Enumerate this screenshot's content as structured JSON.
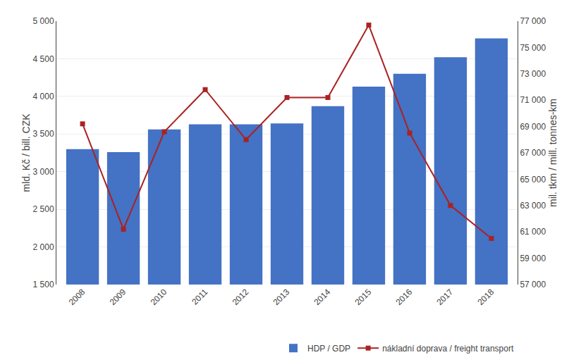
{
  "chart_data": {
    "type": "bar",
    "categories": [
      "2008",
      "2009",
      "2010",
      "2011",
      "2012",
      "2013",
      "2014",
      "2015",
      "2016",
      "2017",
      "2018"
    ],
    "series": [
      {
        "name": "HDP / GDP",
        "type": "bar",
        "color": "#4472C4",
        "values": [
          3300,
          3260,
          3560,
          3630,
          3630,
          3640,
          3870,
          4130,
          4300,
          4520,
          4770
        ]
      },
      {
        "name": "nákladní doprava / freight transport",
        "type": "line",
        "color": "#AA2222",
        "marker": "square",
        "axis": "y2",
        "values": [
          69200,
          61200,
          68600,
          71800,
          68000,
          71200,
          71200,
          76700,
          68500,
          63000,
          60500
        ]
      }
    ],
    "ylabel": "mld. Kč / bill. CZK",
    "y2label": "mil. tkm / mill. tonnes-km",
    "ylim": [
      1500,
      5000
    ],
    "yticks": [
      {
        "value": 1500,
        "label": "1 500"
      },
      {
        "value": 2000,
        "label": "2 000"
      },
      {
        "value": 2500,
        "label": "2 500"
      },
      {
        "value": 3000,
        "label": "3 000"
      },
      {
        "value": 3500,
        "label": "3 500"
      },
      {
        "value": 4000,
        "label": "4 000"
      },
      {
        "value": 4500,
        "label": "4 500"
      },
      {
        "value": 5000,
        "label": "5 000"
      }
    ],
    "y2lim": [
      57000,
      77000
    ],
    "y2ticks": [
      {
        "value": 57000,
        "label": "57 000"
      },
      {
        "value": 59000,
        "label": "59 000"
      },
      {
        "value": 61000,
        "label": "61 000"
      },
      {
        "value": 63000,
        "label": "63 000"
      },
      {
        "value": 65000,
        "label": "65 000"
      },
      {
        "value": 67000,
        "label": "67 000"
      },
      {
        "value": 69000,
        "label": "69 000"
      },
      {
        "value": 71000,
        "label": "71 000"
      },
      {
        "value": 73000,
        "label": "73 000"
      },
      {
        "value": 75000,
        "label": "75 000"
      },
      {
        "value": 77000,
        "label": "77 000"
      }
    ],
    "grid": true,
    "legend": "lower right"
  }
}
